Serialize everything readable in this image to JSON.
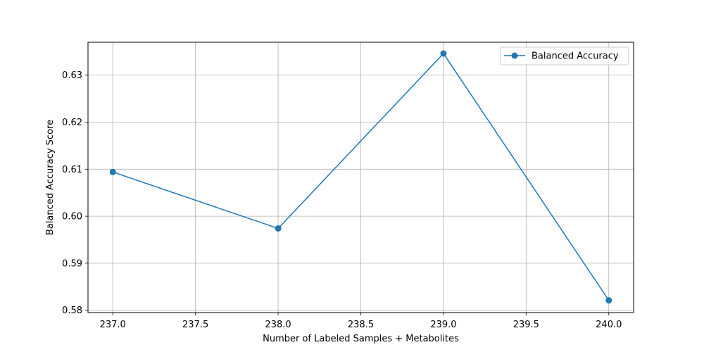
{
  "chart_data": {
    "type": "line",
    "title": "",
    "xlabel": "Number of Labeled Samples + Metabolites",
    "ylabel": "Balanced Accuracy Score",
    "xlim": [
      236.85,
      240.15
    ],
    "ylim": [
      0.5795,
      0.637
    ],
    "xticks": [
      237.0,
      237.5,
      238.0,
      238.5,
      239.0,
      239.5,
      240.0
    ],
    "yticks": [
      0.58,
      0.59,
      0.6,
      0.61,
      0.62,
      0.63
    ],
    "grid": true,
    "legend_position": "top-right",
    "series": [
      {
        "name": "Balanced Accuracy",
        "color": "#1f77b4",
        "marker": "circle",
        "x": [
          237,
          238,
          239,
          240
        ],
        "y": [
          0.6094,
          0.5974,
          0.6346,
          0.5821
        ]
      }
    ]
  }
}
